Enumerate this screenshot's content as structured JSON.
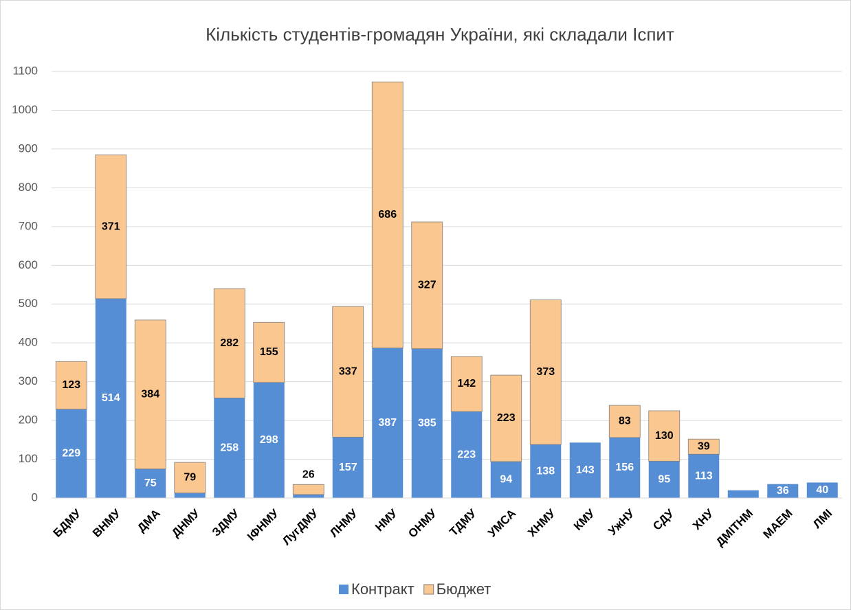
{
  "chart_data": {
    "type": "stacked_bar",
    "title": "Кількість студентів-громадян України, які складали Іспит",
    "categories": [
      "БДМУ",
      "ВНМУ",
      "ДМА",
      "ДНМУ",
      "ЗДМУ",
      "ІФНМУ",
      "ЛугДМУ",
      "ЛНМУ",
      "НМУ",
      "ОНМУ",
      "ТДМУ",
      "УМСА",
      "ХНМУ",
      "КМУ",
      "УжНУ",
      "СДУ",
      "ХНУ",
      "ДМІТНМ",
      "МАЕМ",
      "ЛМІ"
    ],
    "series": [
      {
        "name": "Контракт",
        "color": "#558ed5",
        "values": [
          229,
          514,
          75,
          13,
          258,
          298,
          9,
          157,
          387,
          385,
          223,
          94,
          138,
          143,
          156,
          95,
          113,
          20,
          36,
          40
        ]
      },
      {
        "name": "Бюджет",
        "color": "#fac791",
        "values": [
          123,
          371,
          384,
          79,
          282,
          155,
          26,
          337,
          686,
          327,
          142,
          223,
          373,
          null,
          83,
          130,
          39,
          null,
          null,
          null
        ]
      }
    ],
    "ylim": [
      0,
      1100
    ],
    "yticks": [
      0,
      100,
      200,
      300,
      400,
      500,
      600,
      700,
      800,
      900,
      1000,
      1100
    ],
    "grid": true,
    "legend": "bottom"
  }
}
